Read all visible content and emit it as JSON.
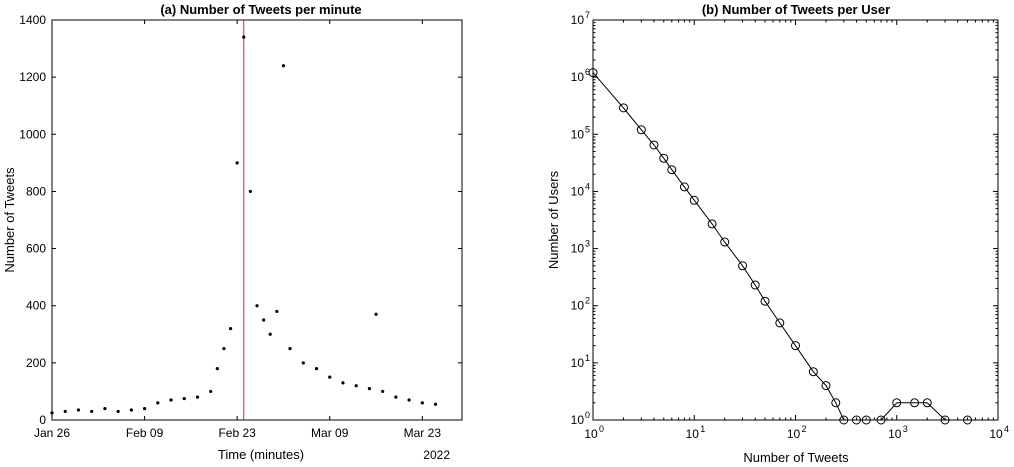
{
  "chart_data": [
    {
      "type": "scatter",
      "title": "(a) Number of Tweets per minute",
      "xlabel": "Time (minutes)",
      "ylabel": "Number of Tweets",
      "year_label": "2022",
      "x_ticks": [
        "Jan 26",
        "Feb 09",
        "Feb 23",
        "Mar 09",
        "Mar 23"
      ],
      "x_tick_dates": [
        "2022-01-26",
        "2022-02-09",
        "2022-02-23",
        "2022-03-09",
        "2022-03-23"
      ],
      "xlim": [
        "2022-01-26",
        "2022-03-29"
      ],
      "ylim": [
        0,
        1400
      ],
      "y_ticks": [
        0,
        200,
        400,
        600,
        800,
        1000,
        1200,
        1400
      ],
      "marker_color": "#000000",
      "highlight_color": "#d62728",
      "highlight_date": "2022-02-24",
      "series": [
        {
          "x": [
            "2022-01-26",
            "2022-01-28",
            "2022-01-30",
            "2022-02-01",
            "2022-02-03",
            "2022-02-05",
            "2022-02-07",
            "2022-02-09",
            "2022-02-11",
            "2022-02-13",
            "2022-02-15",
            "2022-02-17",
            "2022-02-19",
            "2022-02-20",
            "2022-02-21",
            "2022-02-22",
            "2022-02-23",
            "2022-02-24",
            "2022-02-25",
            "2022-02-26",
            "2022-02-27",
            "2022-02-28",
            "2022-03-01",
            "2022-03-02",
            "2022-03-03",
            "2022-03-05",
            "2022-03-07",
            "2022-03-09",
            "2022-03-11",
            "2022-03-13",
            "2022-03-15",
            "2022-03-16",
            "2022-03-17",
            "2022-03-19",
            "2022-03-21",
            "2022-03-23",
            "2022-03-25"
          ],
          "y": [
            25,
            30,
            35,
            30,
            40,
            30,
            35,
            40,
            60,
            70,
            75,
            80,
            100,
            180,
            250,
            320,
            900,
            1340,
            800,
            400,
            350,
            300,
            380,
            1240,
            250,
            200,
            180,
            150,
            130,
            120,
            110,
            370,
            100,
            80,
            70,
            60,
            55
          ]
        }
      ]
    },
    {
      "type": "line",
      "title": "(b) Number of Tweets per User",
      "xlabel": "Number of Tweets",
      "ylabel": "Number of Users",
      "xscale": "log",
      "yscale": "log",
      "xlim": [
        1,
        10000
      ],
      "ylim": [
        1,
        10000000
      ],
      "x_tick_exponents": [
        "0",
        "1",
        "2",
        "3",
        "4"
      ],
      "y_tick_exponents": [
        "0",
        "1",
        "2",
        "3",
        "4",
        "5",
        "6",
        "7"
      ],
      "tick_base": "10",
      "marker": "open-circle",
      "series": [
        {
          "x": [
            1,
            2,
            3,
            4,
            5,
            6,
            8,
            10,
            15,
            20,
            30,
            40,
            50,
            70,
            100,
            150,
            200,
            250,
            300,
            400,
            500,
            700,
            1000,
            1500,
            2000,
            3000,
            5000
          ],
          "y": [
            1200000,
            290000,
            120000,
            65000,
            38000,
            24000,
            12000,
            7000,
            2700,
            1300,
            500,
            230,
            120,
            50,
            20,
            7,
            4,
            2,
            1,
            1,
            1,
            1,
            2,
            2,
            2,
            1,
            1
          ]
        }
      ]
    }
  ]
}
